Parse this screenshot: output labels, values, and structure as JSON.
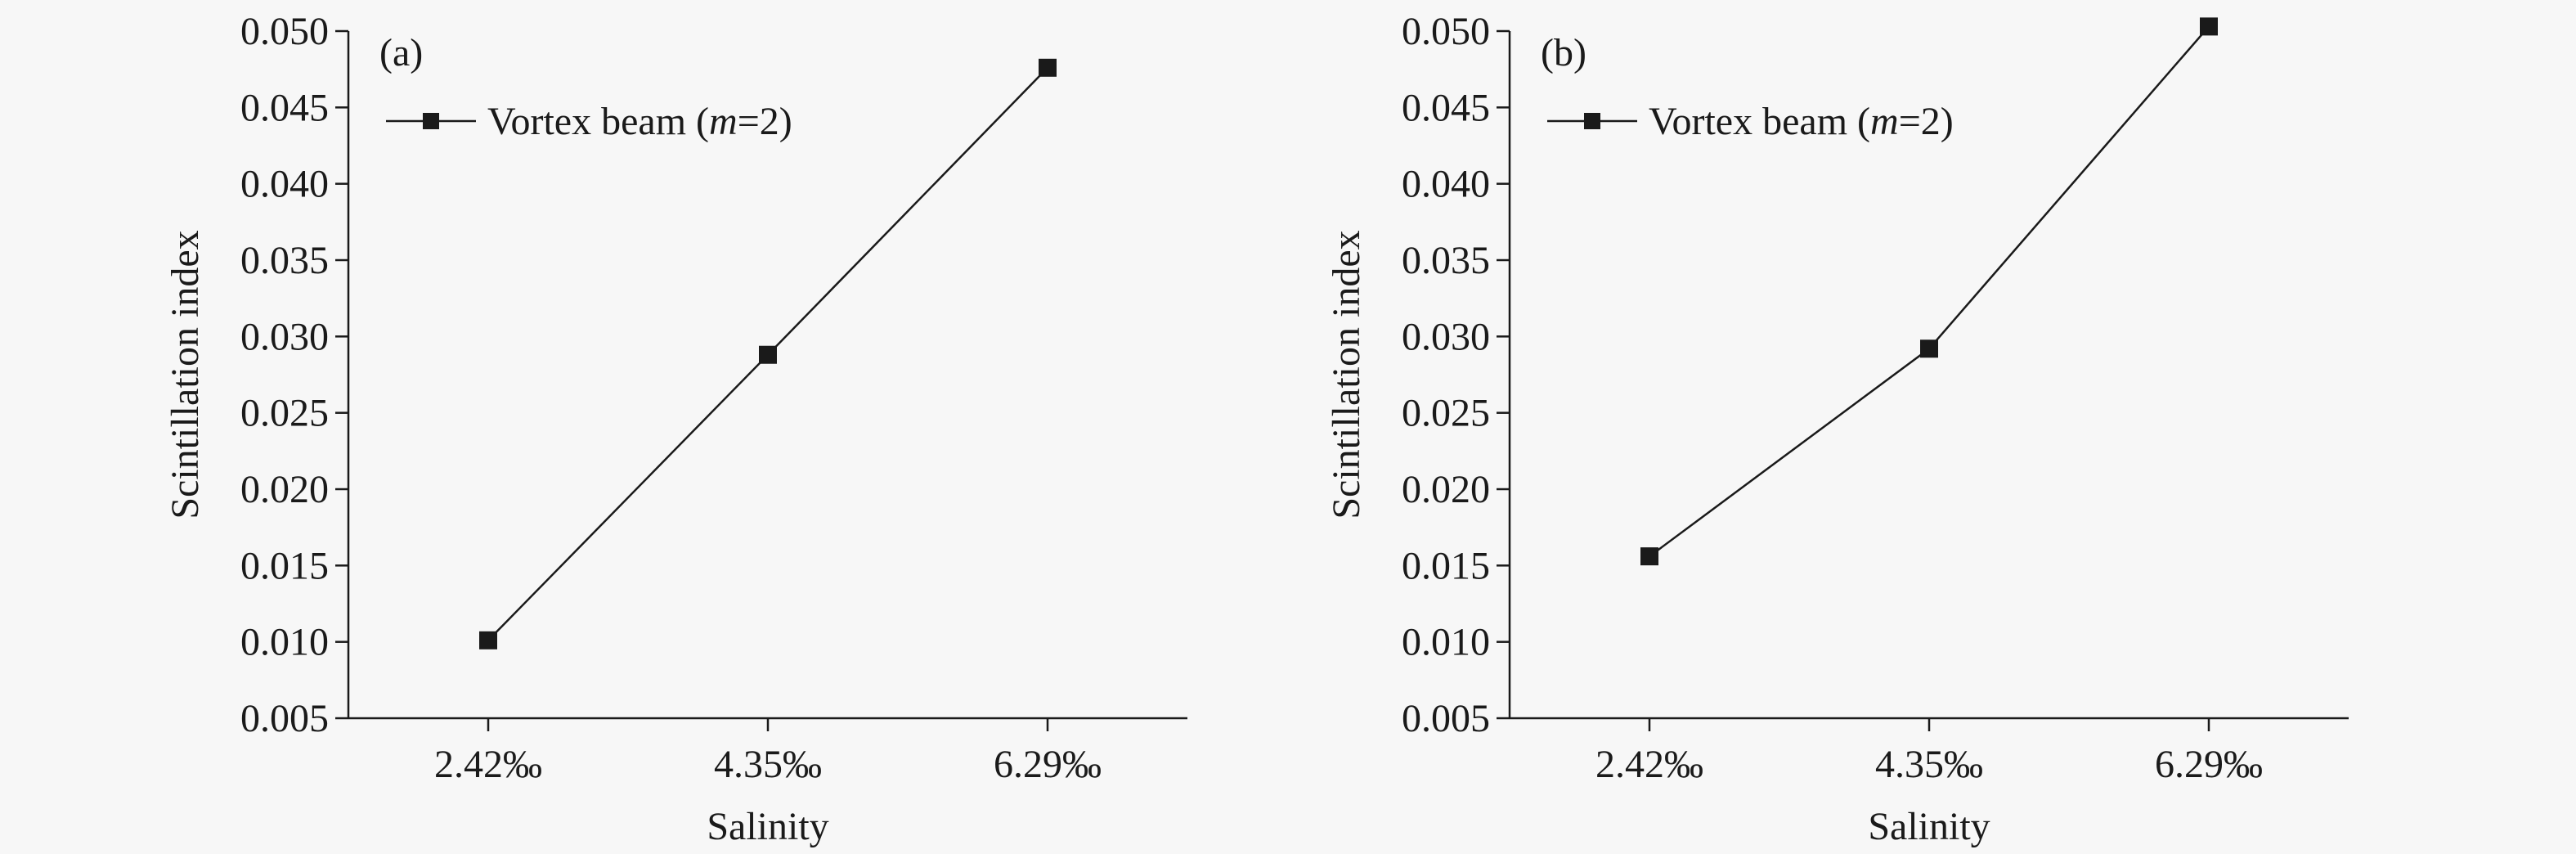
{
  "chart_data": [
    {
      "type": "line",
      "panel_label": "(a)",
      "categories": [
        "2.42‰",
        "4.35‰",
        "6.29‰"
      ],
      "series": [
        {
          "name": "Vortex beam (m=2)",
          "values": [
            0.0101,
            0.0288,
            0.0476
          ]
        }
      ],
      "legend": {
        "prefix": "Vortex beam (",
        "italic": "m",
        "suffix": "=2)"
      },
      "legend_position": "top-left",
      "xlabel": "Salinity",
      "ylabel": "Scintillation index",
      "ylim": [
        0.005,
        0.05
      ],
      "yticks": [
        "0.005",
        "0.010",
        "0.015",
        "0.020",
        "0.025",
        "0.030",
        "0.035",
        "0.040",
        "0.045",
        "0.050"
      ],
      "grid": false,
      "colors": {
        "line": "#1a1a1a",
        "marker": "#1a1a1a"
      }
    },
    {
      "type": "line",
      "panel_label": "(b)",
      "categories": [
        "2.42‰",
        "4.35‰",
        "6.29‰"
      ],
      "series": [
        {
          "name": "Vortex beam (m=2)",
          "values": [
            0.0156,
            0.0292,
            0.0503
          ]
        }
      ],
      "legend": {
        "prefix": "Vortex beam (",
        "italic": "m",
        "suffix": "=2)"
      },
      "legend_position": "top-left",
      "xlabel": "Salinity",
      "ylabel": "Scintillation index",
      "ylim": [
        0.005,
        0.05
      ],
      "yticks": [
        "0.005",
        "0.010",
        "0.015",
        "0.020",
        "0.025",
        "0.030",
        "0.035",
        "0.040",
        "0.045",
        "0.050"
      ],
      "grid": false,
      "colors": {
        "line": "#1a1a1a",
        "marker": "#1a1a1a"
      }
    }
  ]
}
